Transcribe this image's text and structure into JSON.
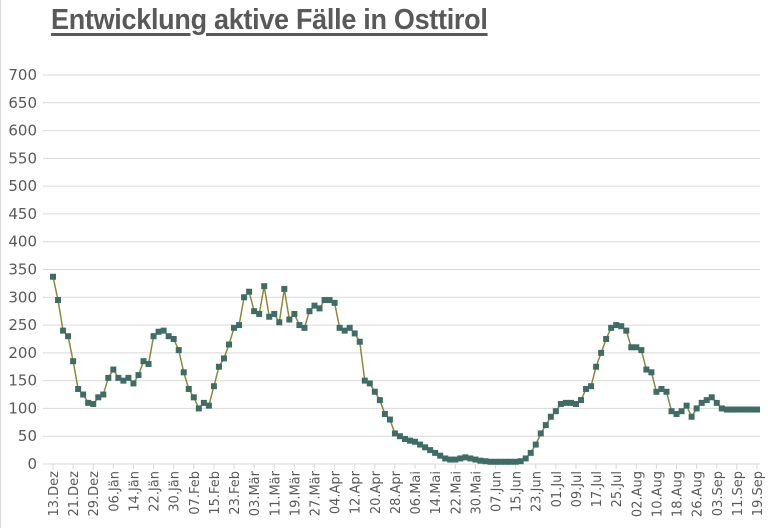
{
  "title": "Entwicklung aktive Fälle in Osttirol",
  "colors": {
    "marker": "#3f6d66",
    "line": "#8a8a3a",
    "grid": "#d9d9d9",
    "text": "#595959"
  },
  "chart_data": {
    "type": "line",
    "title": "Entwicklung aktive Fälle in Osttirol",
    "xlabel": "",
    "ylabel": "",
    "ylim": [
      0,
      700
    ],
    "yticks": [
      0,
      50,
      100,
      150,
      200,
      250,
      300,
      350,
      400,
      450,
      500,
      550,
      600,
      650,
      700
    ],
    "grid": true,
    "legend": "none",
    "x_tick_labels": [
      "13.Dez",
      "21.Dez",
      "29.Dez",
      "06.Jän",
      "14.Jän",
      "22.Jän",
      "30.Jän",
      "07.Feb",
      "15.Feb",
      "23.Feb",
      "03.Mär",
      "11.Mär",
      "19.Mär",
      "27.Mär",
      "04.Apr",
      "12.Apr",
      "20.Apr",
      "28.Apr",
      "06.Mai",
      "14.Mai",
      "22.Mai",
      "30.Mai",
      "07.Jun",
      "15.Jun",
      "23.Jun",
      "01.Jul",
      "09.Jul",
      "17.Jul",
      "25.Jul",
      "02.Aug",
      "10.Aug",
      "18.Aug",
      "26.Aug",
      "03.Sep",
      "11.Sep",
      "19.Sep"
    ],
    "x_day_offsets": [
      0,
      2,
      4,
      6,
      8,
      10,
      12,
      14,
      16,
      18,
      20,
      22,
      24,
      26,
      28,
      30,
      32,
      34,
      36,
      38,
      40,
      42,
      44,
      46,
      48,
      50,
      52,
      54,
      56,
      58,
      60,
      62,
      64,
      66,
      68,
      70,
      72,
      74,
      76,
      78,
      80,
      82,
      84,
      86,
      88,
      90,
      92,
      94,
      96,
      98,
      100,
      102,
      104,
      106,
      108,
      110,
      112,
      114,
      116,
      118,
      120,
      122,
      124,
      126,
      128,
      130,
      132,
      134,
      136,
      138,
      140,
      142,
      144,
      146,
      148,
      150,
      152,
      154,
      156,
      158,
      160,
      162,
      164,
      166,
      168,
      170,
      172,
      174,
      176,
      178,
      180,
      182,
      184,
      186,
      188,
      190,
      192,
      194,
      196,
      198,
      200,
      202,
      204,
      206,
      208,
      210,
      212,
      214,
      216,
      218,
      220,
      222,
      224,
      226,
      228,
      230,
      232,
      234,
      236,
      238,
      240,
      242,
      244,
      246,
      248,
      250,
      252,
      254,
      256,
      258,
      260,
      262,
      264,
      266,
      268,
      270,
      272,
      274,
      276,
      278,
      280
    ],
    "series": [
      {
        "name": "Aktive Fälle",
        "values": [
          337,
          295,
          240,
          230,
          185,
          135,
          125,
          110,
          108,
          120,
          125,
          155,
          170,
          155,
          150,
          155,
          145,
          160,
          185,
          180,
          230,
          238,
          240,
          230,
          225,
          205,
          165,
          135,
          120,
          100,
          110,
          105,
          140,
          175,
          190,
          215,
          245,
          250,
          300,
          310,
          275,
          270,
          320,
          265,
          270,
          255,
          315,
          260,
          270,
          250,
          245,
          275,
          285,
          280,
          295,
          295,
          290,
          245,
          240,
          245,
          235,
          220,
          150,
          145,
          130,
          115,
          90,
          80,
          55,
          50,
          45,
          42,
          40,
          35,
          30,
          25,
          20,
          15,
          10,
          8,
          8,
          10,
          12,
          10,
          8,
          6,
          5,
          4,
          4,
          4,
          4,
          4,
          4,
          5,
          10,
          20,
          35,
          55,
          70,
          85,
          95,
          108,
          110,
          110,
          108,
          115,
          135,
          140,
          175,
          200,
          225,
          245,
          250,
          248,
          240,
          210,
          210,
          205,
          170,
          165,
          130,
          135,
          130,
          95,
          90,
          95,
          105,
          85,
          100,
          110,
          115,
          120,
          110,
          100,
          98,
          98,
          98,
          98,
          98,
          98,
          98
        ]
      }
    ]
  }
}
